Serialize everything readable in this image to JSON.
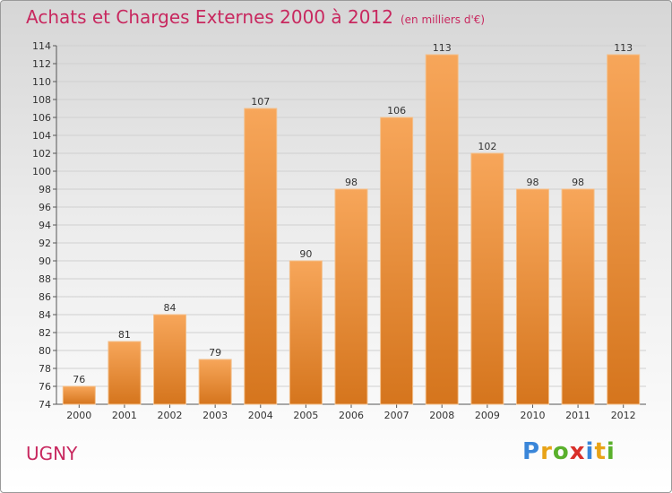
{
  "header": {
    "title": "Achats et Charges Externes 2000 à 2012",
    "subtitle": "(en milliers d'€)"
  },
  "footer": {
    "commune": "UGNY"
  },
  "logo": {
    "letters": [
      {
        "char": "P",
        "color": "#3a86d9"
      },
      {
        "char": "r",
        "color": "#e8a317"
      },
      {
        "char": "o",
        "color": "#5ab02c"
      },
      {
        "char": "x",
        "color": "#d9302a"
      },
      {
        "char": "i",
        "color": "#3a86d9"
      },
      {
        "char": "t",
        "color": "#e8a317"
      },
      {
        "char": "i",
        "color": "#5ab02c"
      }
    ]
  },
  "colors": {
    "bar_top": "#f7a65a",
    "bar_bottom": "#d5751d",
    "title": "#c8285f"
  },
  "chart_data": {
    "type": "bar",
    "title": "Achats et Charges Externes 2000 à 2012",
    "subtitle": "(en milliers d'€)",
    "categories": [
      "2000",
      "2001",
      "2002",
      "2003",
      "2004",
      "2005",
      "2006",
      "2007",
      "2008",
      "2009",
      "2010",
      "2011",
      "2012"
    ],
    "values": [
      76,
      81,
      84,
      79,
      107,
      90,
      98,
      106,
      113,
      102,
      98,
      98,
      113
    ],
    "ylim": [
      74,
      114
    ],
    "yticks": [
      74,
      76,
      78,
      80,
      82,
      84,
      86,
      88,
      90,
      92,
      94,
      96,
      98,
      100,
      102,
      104,
      106,
      108,
      110,
      112,
      114
    ],
    "grid": true,
    "legend": "none",
    "xlabel": "",
    "ylabel": ""
  }
}
